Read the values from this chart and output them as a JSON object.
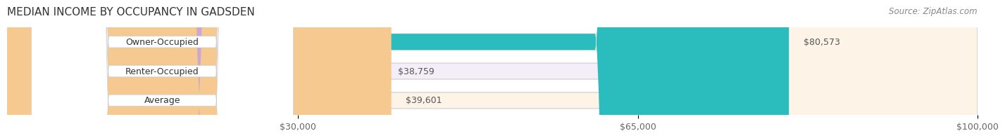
{
  "title": "MEDIAN INCOME BY OCCUPANCY IN GADSDEN",
  "source": "Source: ZipAtlas.com",
  "categories": [
    "Owner-Occupied",
    "Renter-Occupied",
    "Average"
  ],
  "values": [
    80573,
    38759,
    39601
  ],
  "labels": [
    "$80,573",
    "$38,759",
    "$39,601"
  ],
  "colors": [
    "#2bbcbe",
    "#c9a8d4",
    "#f5c990"
  ],
  "bar_bg_colors": [
    "#e8f7f7",
    "#f3eef7",
    "#fdf3e7"
  ],
  "xlim": [
    0,
    100000
  ],
  "xticks": [
    30000,
    65000,
    100000
  ],
  "xtick_labels": [
    "$30,000",
    "$65,000",
    "$100,000"
  ],
  "bar_height": 0.55,
  "title_fontsize": 11,
  "label_fontsize": 9,
  "tick_fontsize": 9,
  "source_fontsize": 8.5
}
